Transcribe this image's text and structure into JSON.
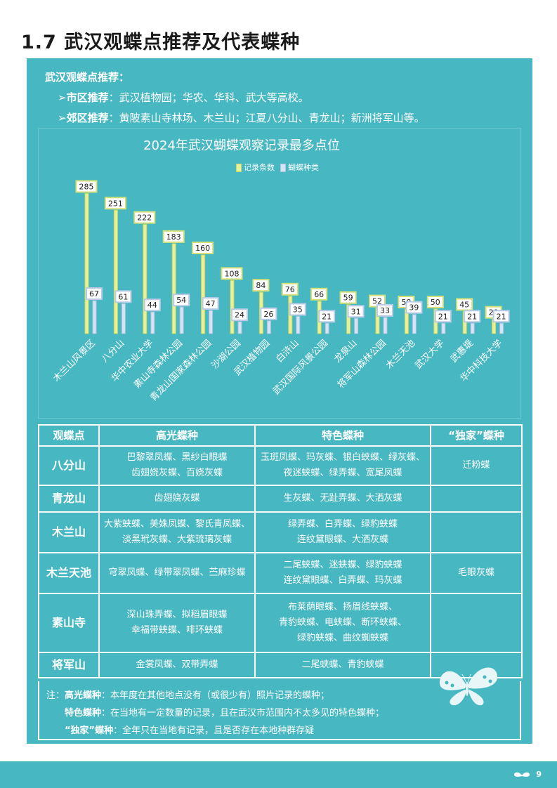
{
  "page_title": "1.7 武汉观蝶点推荐及代表蝶种",
  "intro": {
    "heading": "武汉观蝶点推荐：",
    "urban_label": "市区推荐",
    "urban_text": "：武汉植物园；华农、华科、武大等高校。",
    "suburb_label": "郊区推荐",
    "suburb_text": "：黄陂素山寺林场、木兰山；江夏八分山、青龙山；新洲将军山等。"
  },
  "colors": {
    "panel": "#47b7c2",
    "records": "#e8f0a0",
    "species": "#d8e4f4"
  },
  "chart_data": {
    "type": "bar",
    "title": "2024年武汉蝴蝶观察记录最多点位",
    "categories": [
      "木兰山风景区",
      "八分山",
      "华中农业大学",
      "素山寺森林公园",
      "青龙山国家森林公园",
      "沙湖公园",
      "武汉植物园",
      "白浒山",
      "武汉国际风景公园",
      "龙泉山",
      "将军山森林公园",
      "木兰天池",
      "武汉大学",
      "武惠堤",
      "华中科技大学"
    ],
    "series": [
      {
        "name": "记录条数",
        "values": [
          285,
          251,
          222,
          183,
          160,
          108,
          84,
          76,
          66,
          59,
          52,
          50,
          50,
          45,
          29
        ]
      },
      {
        "name": "蝴蝶种类",
        "values": [
          67,
          61,
          44,
          54,
          47,
          24,
          26,
          35,
          21,
          31,
          33,
          39,
          21,
          21,
          21
        ]
      }
    ],
    "legend": "top-center",
    "grid": false
  },
  "table": {
    "headers": [
      "观蝶点",
      "高光蝶种",
      "特色蝶种",
      "“独家”蝶种"
    ],
    "rows": [
      {
        "site": "八分山",
        "highlight": [
          "巴黎翠凤蝶、黑纱白眼蝶",
          "齿翅娆灰蝶、百娆灰蝶"
        ],
        "featured": [
          "玉斑凤蝶、玛灰蝶、银白蛱蝶、绿灰蝶、",
          "夜迷蛱蝶、绿弄蝶、宽尾凤蝶"
        ],
        "exclusive": [
          "迁粉蝶"
        ]
      },
      {
        "site": "青龙山",
        "highlight": [
          "齿翅娆灰蝶"
        ],
        "featured": [
          "生灰蝶、无趾弄蝶、大洒灰蝶"
        ],
        "exclusive": []
      },
      {
        "site": "木兰山",
        "highlight": [
          "大紫蛱蝶、美姝凤蝶、黎氏青凤蝶、",
          "淡黑玳灰蝶、大紫琉璃灰蝶"
        ],
        "featured": [
          "绿弄蝶、白弄蝶、绿豹蛱蝶",
          "连纹黛眼蝶、大洒灰蝶"
        ],
        "exclusive": []
      },
      {
        "site": "木兰天池",
        "highlight": [
          "穹翠凤蝶、绿带翠凤蝶、苎麻珍蝶"
        ],
        "featured": [
          "二尾蛱蝶、迷蛱蝶、绿豹蛱蝶",
          "连纹黛眼蝶、白弄蝶、玛灰蝶"
        ],
        "exclusive": [
          "毛眼灰蝶"
        ]
      },
      {
        "site": "素山寺",
        "highlight": [
          "深山珠弄蝶、拟稻眉眼蝶",
          "幸福带蛱蝶、啡环蛱蝶"
        ],
        "featured": [
          "布莱荫眼蝶、扬眉线蛱蝶、",
          "青豹蛱蝶、电蛱蝶、断环蛱蝶、",
          "绿豹蛱蝶、曲纹蜘蛱蝶"
        ],
        "exclusive": []
      },
      {
        "site": "将军山",
        "highlight": [
          "金裳凤蝶、双带弄蝶"
        ],
        "featured": [
          "二尾蛱蝶、青豹蛱蝶"
        ],
        "exclusive": []
      }
    ]
  },
  "notes": {
    "prefix": "注：",
    "n1_label": "高光蝶种",
    "n1_text": "：本年度在其他地点没有（或很少有）照片记录的蝶种；",
    "n2_label": "特色蝶种",
    "n2_text": "：在当地有一定数量的记录，且在武汉市范围内不太多见的特色蝶种；",
    "n3_label": "“独家”蝶种",
    "n3_text": "：全年只在当地有记录，且是否存在本地种群存疑"
  },
  "page_number": "9"
}
